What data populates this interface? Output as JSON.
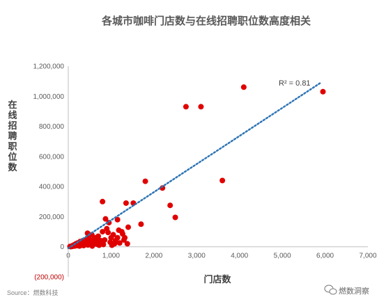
{
  "chart_data": {
    "type": "scatter",
    "title": "各城市咖啡门店数与在线招聘职位数高度相关",
    "xlabel": "门店数",
    "ylabel": "在线招聘职位数",
    "xlim": [
      0,
      7000
    ],
    "ylim": [
      -200000,
      1200000
    ],
    "x_ticks": [
      "0",
      "1,000",
      "2,000",
      "3,000",
      "4,000",
      "5,000",
      "6,000",
      "7,000"
    ],
    "y_ticks": [
      "(200,000)",
      "0",
      "200,000",
      "400,000",
      "600,000",
      "800,000",
      "1,000,000",
      "1,200,000"
    ],
    "marker_color": "#e00000",
    "trendline": {
      "style": "dotted",
      "color": "#2e75b6",
      "from": [
        0,
        -10000
      ],
      "to": [
        5900,
        1090000
      ],
      "label": "R² = 0.81"
    },
    "points": [
      [
        5950,
        1030000
      ],
      [
        4100,
        1060000
      ],
      [
        2750,
        930000
      ],
      [
        3100,
        930000
      ],
      [
        3600,
        440000
      ],
      [
        2200,
        390000
      ],
      [
        1800,
        435000
      ],
      [
        2380,
        275000
      ],
      [
        2500,
        195000
      ],
      [
        800,
        300000
      ],
      [
        1350,
        290000
      ],
      [
        1520,
        290000
      ],
      [
        1150,
        180000
      ],
      [
        1700,
        150000
      ],
      [
        900,
        120000
      ],
      [
        1250,
        100000
      ],
      [
        1050,
        80000
      ],
      [
        1150,
        60000
      ],
      [
        1300,
        45000
      ],
      [
        950,
        160000
      ],
      [
        870,
        185000
      ],
      [
        1400,
        130000
      ],
      [
        1200,
        25000
      ],
      [
        1100,
        40000
      ],
      [
        700,
        70000
      ],
      [
        600,
        50000
      ],
      [
        550,
        80000
      ],
      [
        450,
        90000
      ],
      [
        500,
        40000
      ],
      [
        650,
        30000
      ],
      [
        750,
        20000
      ],
      [
        850,
        45000
      ],
      [
        400,
        30000
      ],
      [
        350,
        20000
      ],
      [
        300,
        15000
      ],
      [
        250,
        10000
      ],
      [
        200,
        8000
      ],
      [
        150,
        5000
      ],
      [
        100,
        3000
      ],
      [
        60,
        1000
      ],
      [
        180,
        20000
      ],
      [
        280,
        35000
      ],
      [
        320,
        10000
      ],
      [
        420,
        15000
      ],
      [
        520,
        25000
      ],
      [
        580,
        15000
      ],
      [
        620,
        60000
      ],
      [
        480,
        55000
      ],
      [
        380,
        45000
      ],
      [
        680,
        35000
      ],
      [
        720,
        10000
      ],
      [
        820,
        15000
      ],
      [
        980,
        30000
      ],
      [
        1020,
        10000
      ],
      [
        1080,
        20000
      ],
      [
        1320,
        60000
      ],
      [
        220,
        25000
      ],
      [
        130,
        12000
      ],
      [
        90,
        6000
      ],
      [
        40,
        2000
      ],
      [
        260,
        5000
      ],
      [
        360,
        8000
      ],
      [
        460,
        12000
      ],
      [
        560,
        5000
      ],
      [
        660,
        18000
      ],
      [
        760,
        40000
      ],
      [
        1180,
        110000
      ],
      [
        1270,
        85000
      ],
      [
        930,
        95000
      ],
      [
        1380,
        20000
      ],
      [
        1000,
        60000
      ],
      [
        800,
        100000
      ],
      [
        600,
        25000
      ],
      [
        530,
        35000
      ],
      [
        470,
        20000
      ],
      [
        340,
        40000
      ]
    ]
  },
  "source": "Source：燃数科技",
  "watermark": {
    "text": "燃数洞察",
    "icon": "wechat-icon"
  }
}
